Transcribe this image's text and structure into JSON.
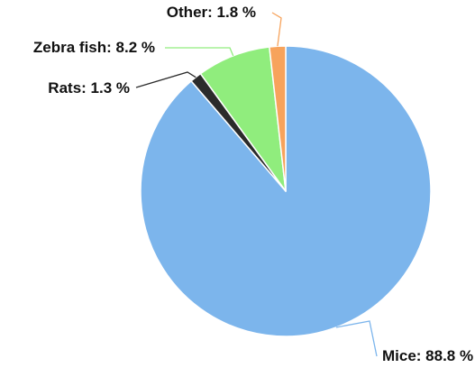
{
  "chart_data": {
    "type": "pie",
    "title": "",
    "start_angle_deg": 0,
    "direction": "clockwise",
    "legend": "none",
    "label_style": "callout",
    "slices": [
      {
        "label": "Mice",
        "value": 88.8,
        "display": "Mice: 88.8 %",
        "color": "#7cb5ec"
      },
      {
        "label": "Rats",
        "value": 1.3,
        "display": "Rats: 1.3 %",
        "color": "#2b2b2b"
      },
      {
        "label": "Zebra fish",
        "value": 8.2,
        "display": "Zebra fish: 8.2 %",
        "color": "#90ed7d"
      },
      {
        "label": "Other",
        "value": 1.8,
        "display": "Other: 1.8 %",
        "color": "#f7a35c"
      }
    ]
  }
}
